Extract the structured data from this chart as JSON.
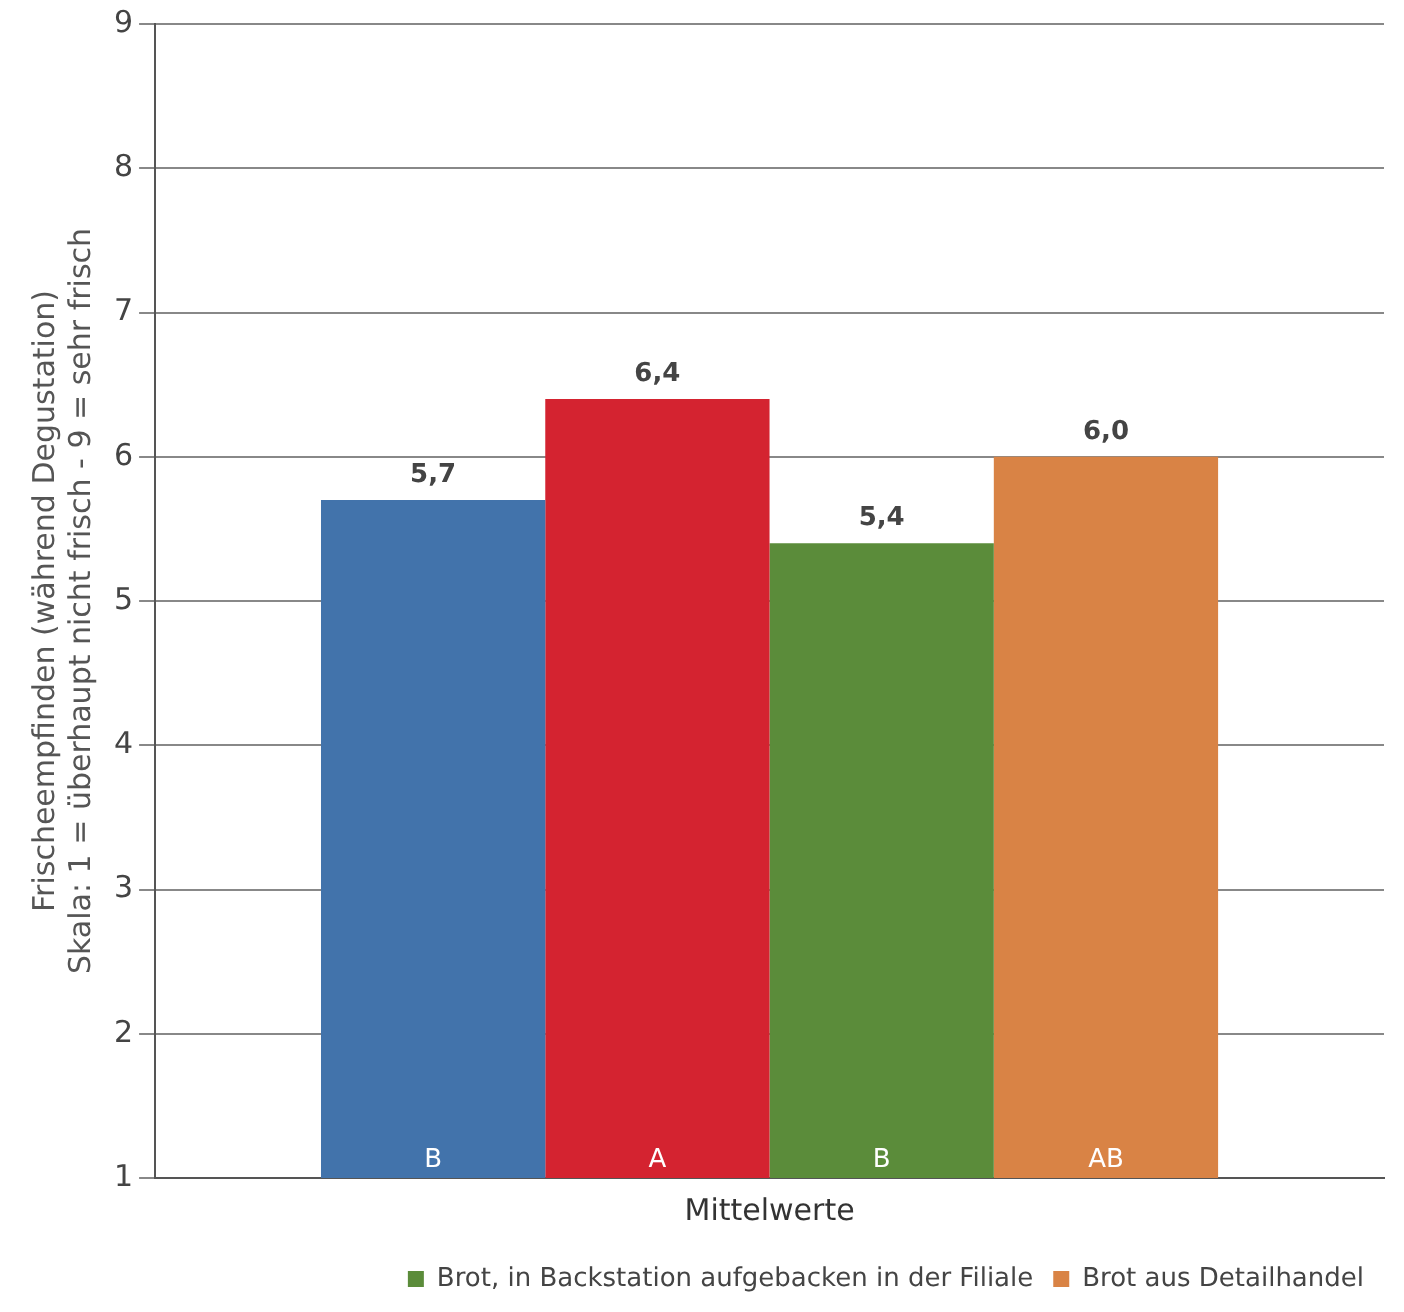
{
  "chart_data": {
    "type": "bar",
    "ylabel": "Frischeempfinden (während Degustation)\nSkala: 1 = überhaupt nicht frisch - 9 = sehr frisch",
    "categories": [
      "Mittelwerte"
    ],
    "series": [
      {
        "color": "#4273ab",
        "values": [
          5.7
        ],
        "value_labels": [
          "5,7"
        ]
      },
      {
        "color": "#d42330",
        "values": [
          6.4
        ],
        "value_labels": [
          "6,4"
        ]
      },
      {
        "name": "Brot, in Backstation aufgebacken in der Filiale",
        "color": "#5b8c3a",
        "values": [
          5.4
        ],
        "value_labels": [
          "5,4"
        ]
      },
      {
        "name": "Brot aus Detailhandel",
        "color": "#d98345",
        "values": [
          6.0
        ],
        "value_labels": [
          "6,0"
        ]
      }
    ],
    "ylim": [
      1,
      9
    ],
    "yticks": [
      1,
      2,
      3,
      4,
      5,
      6,
      7,
      8,
      9
    ],
    "grid": "y",
    "legend": "bottom",
    "annotations": [
      "B",
      "A",
      "B",
      "AB"
    ]
  }
}
